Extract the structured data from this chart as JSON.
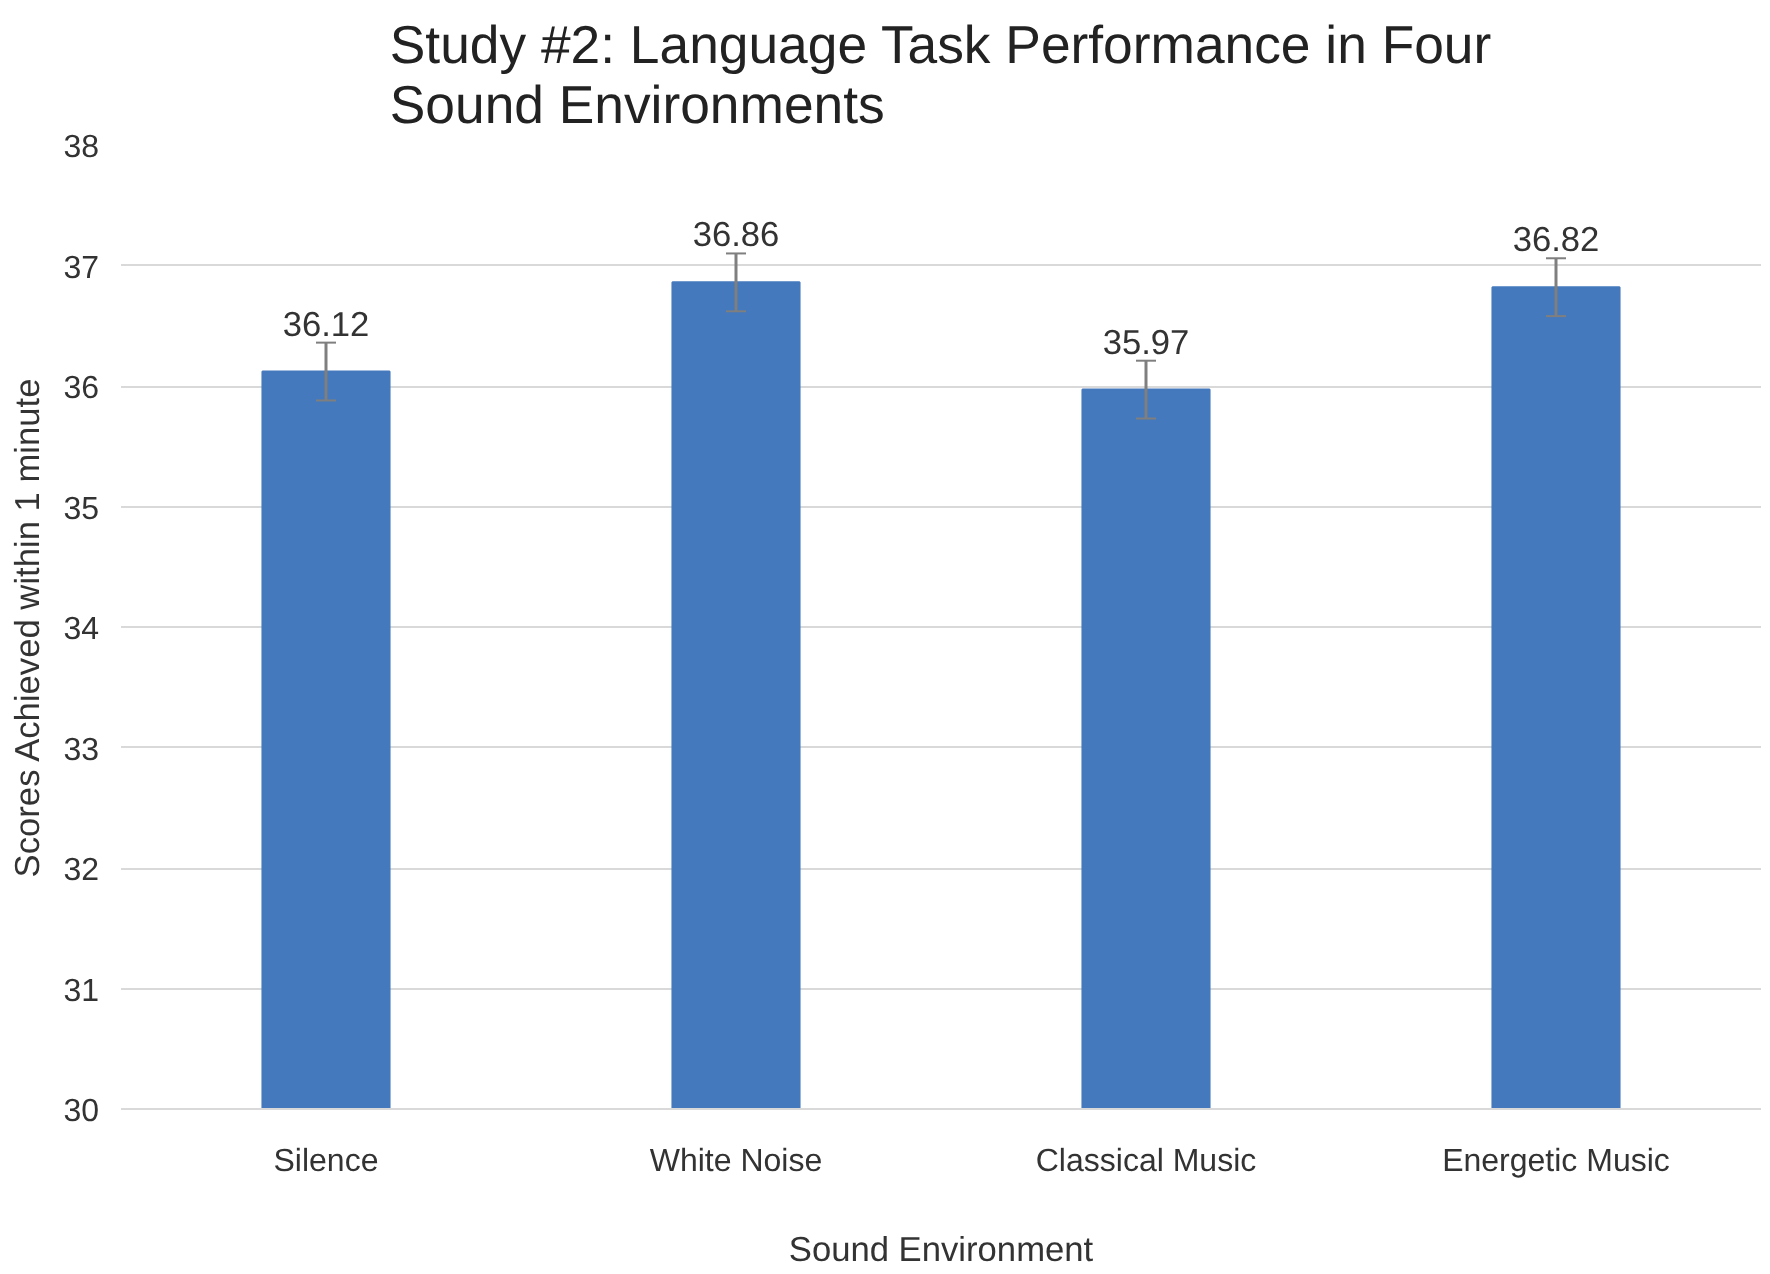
{
  "chart_data": {
    "type": "bar",
    "title": "Study #2: Language Task Performance in Four Sound Environments",
    "xlabel": "Sound Environment",
    "ylabel": "Scores Achieved within 1 minute",
    "categories": [
      "Silence",
      "White Noise",
      "Classical Music",
      "Energetic Music"
    ],
    "values": [
      36.12,
      36.86,
      35.97,
      36.82
    ],
    "color": "#4479bd",
    "errors": [
      0.24,
      0.24,
      0.24,
      0.24
    ],
    "ylim": [
      30,
      38
    ],
    "yticks": [
      30,
      31,
      32,
      33,
      34,
      35,
      36,
      37,
      38
    ],
    "grid": "y",
    "data_labels": true
  }
}
